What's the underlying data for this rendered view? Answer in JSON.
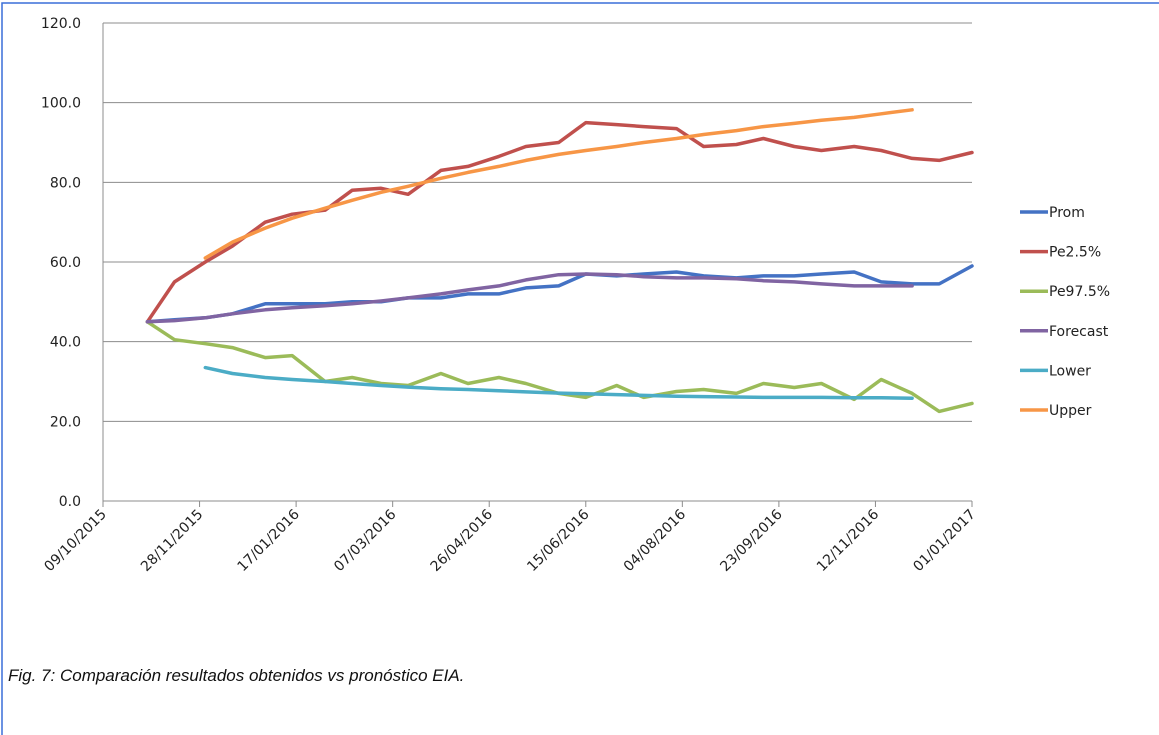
{
  "chart_data": {
    "type": "line",
    "caption": "Fig. 7: Comparación resultados obtenidos vs pronóstico EIA.",
    "x": [
      "01/11/2015",
      "15/11/2015",
      "01/12/2015",
      "15/12/2015",
      "01/01/2016",
      "15/01/2016",
      "01/02/2016",
      "15/02/2016",
      "01/03/2016",
      "15/03/2016",
      "01/04/2016",
      "15/04/2016",
      "01/05/2016",
      "15/05/2016",
      "01/06/2016",
      "15/06/2016",
      "01/07/2016",
      "15/07/2016",
      "01/08/2016",
      "15/08/2016",
      "01/09/2016",
      "15/09/2016",
      "01/10/2016",
      "15/10/2016",
      "01/11/2016",
      "15/11/2016",
      "01/12/2016",
      "15/12/2016",
      "01/01/2017"
    ],
    "series": [
      {
        "name": "Prom",
        "color": "#4472c4",
        "values": [
          45,
          45.5,
          46,
          47,
          49.5,
          49.5,
          49.5,
          50,
          50,
          51,
          51,
          52,
          52,
          53.5,
          54,
          57,
          56.5,
          57,
          57.5,
          56.5,
          56,
          56.5,
          56.5,
          57,
          57.5,
          55,
          54.5,
          54.5,
          59
        ]
      },
      {
        "name": "Pe2.5%",
        "color": "#c0504d",
        "values": [
          45,
          55,
          60,
          64,
          70,
          72,
          73,
          78,
          78.5,
          77,
          83,
          84,
          86.5,
          89,
          90,
          95,
          94.5,
          94,
          93.5,
          89,
          89.5,
          91,
          89,
          88,
          89,
          88,
          86,
          85.5,
          87.5
        ]
      },
      {
        "name": "Pe97.5%",
        "color": "#9bbb59",
        "values": [
          45,
          40.5,
          39.5,
          38.5,
          36,
          36.5,
          30,
          31,
          29.5,
          29,
          32,
          29.5,
          31,
          29.5,
          27,
          26,
          29,
          26,
          27.5,
          28,
          27,
          29.5,
          28.5,
          29.5,
          25.5,
          30.5,
          27,
          22.5,
          24.5
        ]
      },
      {
        "name": "Forecast",
        "color": "#8064a2",
        "values": [
          45,
          45.3,
          46,
          47,
          48,
          48.5,
          49,
          49.5,
          50.2,
          51,
          52,
          53,
          54,
          55.5,
          56.8,
          57,
          56.8,
          56.3,
          56,
          56,
          55.8,
          55.3,
          55,
          54.5,
          54,
          54,
          54,
          null,
          null
        ]
      },
      {
        "name": "Lower",
        "color": "#4bacc6",
        "values": [
          null,
          null,
          33.5,
          32,
          31,
          30.5,
          30,
          29.5,
          29,
          28.6,
          28.2,
          28,
          27.7,
          27.4,
          27.1,
          26.9,
          26.7,
          26.5,
          26.3,
          26.2,
          26.1,
          26,
          26,
          26,
          25.9,
          25.9,
          25.8,
          null,
          null
        ]
      },
      {
        "name": "Upper",
        "color": "#f79646",
        "values": [
          null,
          null,
          61,
          65,
          68.5,
          71,
          73.5,
          75.5,
          77.5,
          79,
          81,
          82.5,
          84,
          85.5,
          87,
          88,
          89,
          90,
          91,
          92,
          93,
          94,
          94.8,
          95.6,
          96.3,
          97.2,
          98.2,
          null,
          null
        ]
      }
    ],
    "xlim": [
      "09/10/2015",
      "01/01/2017"
    ],
    "xticks": [
      "09/10/2015",
      "28/11/2015",
      "17/01/2016",
      "07/03/2016",
      "26/04/2016",
      "15/06/2016",
      "04/08/2016",
      "23/09/2016",
      "12/11/2016",
      "01/01/2017"
    ],
    "ylim": [
      0,
      120
    ],
    "yticks": [
      {
        "value": 0,
        "label": "0.0"
      },
      {
        "value": 20,
        "label": "20.0"
      },
      {
        "value": 40,
        "label": "40.0"
      },
      {
        "value": 60,
        "label": "60.0"
      },
      {
        "value": 80,
        "label": "80.0"
      },
      {
        "value": 100,
        "label": "100.0"
      },
      {
        "value": 120,
        "label": "120.0"
      }
    ],
    "grid": true,
    "legend": "right"
  }
}
